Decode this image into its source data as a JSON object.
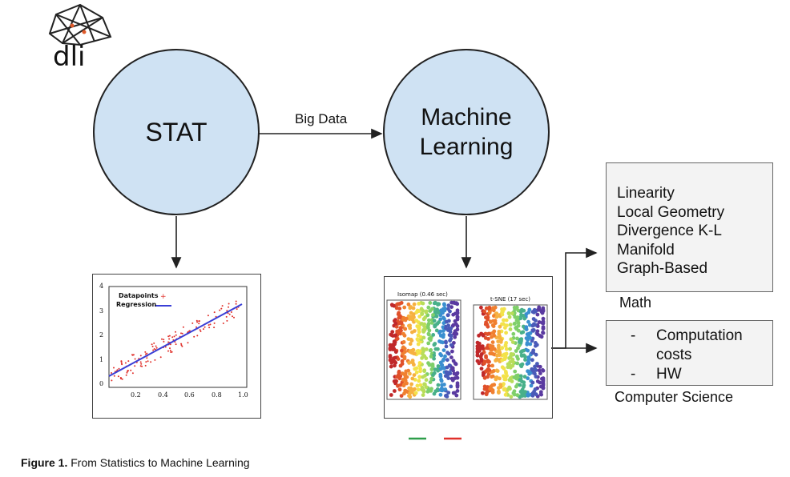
{
  "logo": {
    "text": "dli",
    "icon": "geodesic-dome-icon"
  },
  "nodes": {
    "stat": "STAT",
    "ml_line1": "Machine",
    "ml_line2": "Learning"
  },
  "edge_label": "Big Data",
  "math_box": {
    "items": [
      "Linearity",
      "Local Geometry",
      "Divergence K-L",
      "Manifold",
      "Graph-Based"
    ],
    "label": "Math"
  },
  "cs_box": {
    "items": [
      {
        "bullet": "-",
        "text_line1": "Computation",
        "text_line2": "costs"
      },
      {
        "bullet": "-",
        "text_line1": "HW"
      }
    ],
    "label": "Computer Science"
  },
  "regression_plot": {
    "legend": [
      "Datapoints",
      "Regression"
    ],
    "x_ticks": [
      "0.2",
      "0.4",
      "0.6",
      "0.8",
      "1.0"
    ],
    "y_ticks": [
      "0",
      "1",
      "2",
      "3",
      "4"
    ],
    "colors": {
      "points": "#e0302a",
      "line": "#3a3fd6"
    }
  },
  "embedding_plot": {
    "left_title": "Isomap (0.46 sec)",
    "right_title": "t-SNE (17 sec)"
  },
  "legend_marks": {
    "green": "#2e9e4a",
    "red": "#e0302a"
  },
  "caption": {
    "bold": "Figure 1.",
    "text": " From Statistics to Machine Learning"
  }
}
